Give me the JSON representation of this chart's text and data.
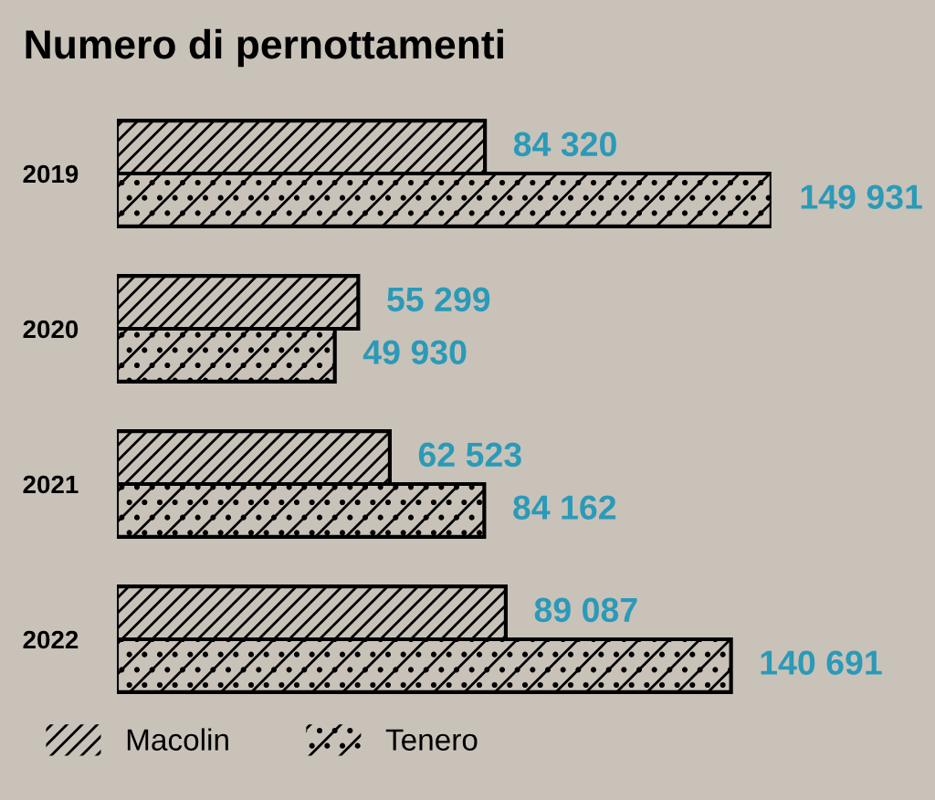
{
  "chart_data": {
    "type": "bar",
    "orientation": "horizontal",
    "title": "Numero di pernottamenti",
    "categories": [
      "2019",
      "2020",
      "2021",
      "2022"
    ],
    "series": [
      {
        "name": "Macolin",
        "color": "#000000",
        "values": [
          84320,
          55299,
          62523,
          89087
        ],
        "value_labels": [
          "84 320",
          "55 299",
          "62 523",
          "89 087"
        ]
      },
      {
        "name": "Tenero",
        "color": "#000000",
        "values": [
          149931,
          49930,
          84162,
          140691
        ],
        "value_labels": [
          "149 931",
          "49 930",
          "84 162",
          "140 691"
        ]
      }
    ],
    "tick_labels": "y",
    "grid": false,
    "legend": "bottom left"
  }
}
